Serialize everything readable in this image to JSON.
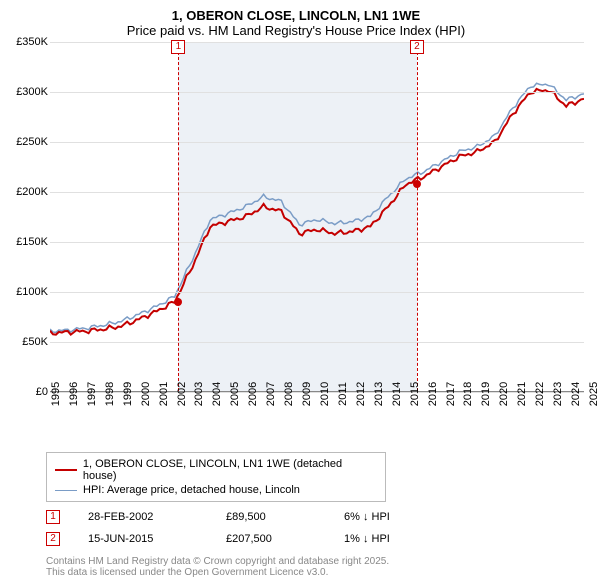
{
  "title_main": "1, OBERON CLOSE, LINCOLN, LN1 1WE",
  "title_sub": "Price paid vs. HM Land Registry's House Price Index (HPI)",
  "chart": {
    "type": "line",
    "background_color": "#ffffff",
    "grid_color": "#e0e0e0",
    "shade_color": "rgba(135,162,196,0.15)",
    "ylim": [
      0,
      350000
    ],
    "ytick_step": 50000,
    "y_ticks": [
      "£0",
      "£50K",
      "£100K",
      "£150K",
      "£200K",
      "£250K",
      "£300K",
      "£350K"
    ],
    "x_years": [
      1995,
      1996,
      1997,
      1998,
      1999,
      2000,
      2001,
      2002,
      2003,
      2004,
      2005,
      2006,
      2007,
      2008,
      2009,
      2010,
      2011,
      2012,
      2013,
      2014,
      2015,
      2016,
      2017,
      2018,
      2019,
      2020,
      2021,
      2022,
      2023,
      2024,
      2025
    ],
    "shade_start_year": 2002.16,
    "shade_end_year": 2015.46,
    "series": {
      "property": {
        "color": "#c40000",
        "width": 2,
        "points": [
          [
            1995,
            58
          ],
          [
            1996,
            59
          ],
          [
            1997,
            60
          ],
          [
            1998,
            62
          ],
          [
            1999,
            65
          ],
          [
            2000,
            72
          ],
          [
            2001,
            80
          ],
          [
            2002,
            89.5
          ],
          [
            2003,
            125
          ],
          [
            2004,
            165
          ],
          [
            2005,
            170
          ],
          [
            2006,
            175
          ],
          [
            2007,
            185
          ],
          [
            2008,
            180
          ],
          [
            2009,
            158
          ],
          [
            2010,
            162
          ],
          [
            2011,
            158
          ],
          [
            2012,
            160
          ],
          [
            2013,
            165
          ],
          [
            2014,
            185
          ],
          [
            2015,
            207.5
          ],
          [
            2016,
            215
          ],
          [
            2017,
            225
          ],
          [
            2018,
            235
          ],
          [
            2019,
            240
          ],
          [
            2020,
            250
          ],
          [
            2021,
            278
          ],
          [
            2022,
            300
          ],
          [
            2023,
            302
          ],
          [
            2024,
            286
          ],
          [
            2025,
            293
          ]
        ]
      },
      "hpi": {
        "color": "#7a9cc6",
        "width": 1.5,
        "points": [
          [
            1995,
            60
          ],
          [
            1996,
            61
          ],
          [
            1997,
            63
          ],
          [
            1998,
            66
          ],
          [
            1999,
            70
          ],
          [
            2000,
            77
          ],
          [
            2001,
            85
          ],
          [
            2002,
            95
          ],
          [
            2003,
            132
          ],
          [
            2004,
            172
          ],
          [
            2005,
            178
          ],
          [
            2006,
            185
          ],
          [
            2007,
            195
          ],
          [
            2008,
            190
          ],
          [
            2009,
            167
          ],
          [
            2010,
            172
          ],
          [
            2011,
            168
          ],
          [
            2012,
            170
          ],
          [
            2013,
            175
          ],
          [
            2014,
            195
          ],
          [
            2015,
            213
          ],
          [
            2016,
            220
          ],
          [
            2017,
            230
          ],
          [
            2018,
            240
          ],
          [
            2019,
            245
          ],
          [
            2020,
            256
          ],
          [
            2021,
            284
          ],
          [
            2022,
            306
          ],
          [
            2023,
            308
          ],
          [
            2024,
            292
          ],
          [
            2025,
            298
          ]
        ]
      }
    },
    "markers": [
      {
        "n": "1",
        "year": 2002.16,
        "value": 89.5
      },
      {
        "n": "2",
        "year": 2015.46,
        "value": 207.5
      }
    ]
  },
  "legend": {
    "l1": {
      "color": "#c40000",
      "width": 2,
      "text": "1, OBERON CLOSE, LINCOLN, LN1 1WE (detached house)"
    },
    "l2": {
      "color": "#7a9cc6",
      "width": 1.5,
      "text": "HPI: Average price, detached house, Lincoln"
    }
  },
  "annotations": [
    {
      "n": "1",
      "date": "28-FEB-2002",
      "price": "£89,500",
      "delta": "6% ↓ HPI"
    },
    {
      "n": "2",
      "date": "15-JUN-2015",
      "price": "£207,500",
      "delta": "1% ↓ HPI"
    }
  ],
  "footer1": "Contains HM Land Registry data © Crown copyright and database right 2025.",
  "footer2": "This data is licensed under the Open Government Licence v3.0."
}
